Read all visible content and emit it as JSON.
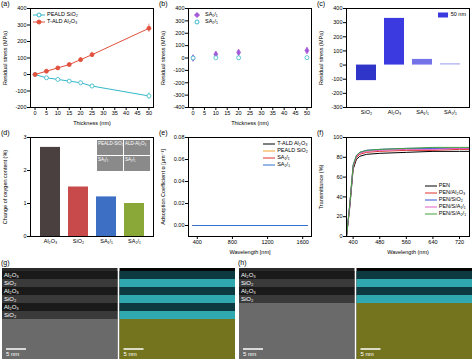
{
  "chart_data": [
    {
      "panel": "(a)",
      "type": "line",
      "x_label": "Thickness (nm)",
      "y_label": "Residual stress (MPa)",
      "x": [
        0,
        5,
        10,
        15,
        20,
        25,
        50
      ],
      "series": [
        {
          "name": "PEALD SiO₂",
          "color": "#35b8c8",
          "marker": "circle-open",
          "values": [
            0,
            -20,
            -30,
            -40,
            -50,
            -70,
            -130
          ],
          "errors": [
            0,
            5,
            8,
            8,
            10,
            12,
            20
          ]
        },
        {
          "name": "T-ALD Al₂O₃",
          "color": "#e0503c",
          "marker": "circle",
          "values": [
            0,
            20,
            40,
            60,
            90,
            120,
            280
          ],
          "errors": [
            0,
            5,
            8,
            10,
            12,
            15,
            25
          ]
        }
      ],
      "xlim": [
        -2,
        52
      ],
      "xticks": [
        0,
        5,
        10,
        15,
        20,
        25,
        30,
        35,
        40,
        45,
        50
      ],
      "ylim": [
        -200,
        400
      ],
      "yticks": [
        -200,
        -100,
        0,
        100,
        200,
        300,
        400
      ],
      "legend": "top-left"
    },
    {
      "panel": "(b)",
      "type": "scatter",
      "x_label": "Thickness (nm)",
      "y_label": "Residual stress (MPa)",
      "x": [
        0,
        10,
        20,
        50
      ],
      "series": [
        {
          "name": "SA₁/₁",
          "color": "#a35ad8",
          "marker": "diamond",
          "values": [
            0,
            30,
            45,
            60
          ],
          "errors": [
            0,
            15,
            12,
            20
          ]
        },
        {
          "name": "SA₂/₁",
          "color": "#35b8c8",
          "marker": "circle-open",
          "values": [
            0,
            2,
            2,
            3
          ],
          "errors": [
            0,
            3,
            3,
            3
          ]
        }
      ],
      "xlim": [
        -2,
        52
      ],
      "xticks": [
        0,
        5,
        10,
        15,
        20,
        25,
        30,
        35,
        40,
        45,
        50
      ],
      "ylim": [
        -400,
        400
      ],
      "yticks": [
        -400,
        -300,
        -200,
        -100,
        0,
        100,
        200,
        300,
        400
      ],
      "legend": "top-left"
    },
    {
      "panel": "(c)",
      "type": "bar",
      "y_label": "Residual stress (MPa)",
      "categories": [
        "SiO₂",
        "Al₂O₃",
        "SA₁/₁",
        "SA₂/₁"
      ],
      "series": [
        {
          "name": "50 nm",
          "color": "#3a3ae0",
          "values": [
            -110,
            330,
            40,
            10
          ],
          "colors": [
            "#2f35c8",
            "#3a3ae0",
            "#7474e8",
            "#b4b8f0"
          ]
        }
      ],
      "ylim": [
        -300,
        400
      ],
      "yticks": [
        -300,
        -200,
        -100,
        0,
        100,
        200,
        300,
        400
      ],
      "legend": "top-right"
    },
    {
      "panel": "(d)",
      "type": "bar",
      "y_label": "Change of oxygen content (%)",
      "categories": [
        "Al₂O₃",
        "SiO₂",
        "SA₁/₁",
        "SA₂/₁"
      ],
      "values": [
        2.7,
        1.5,
        1.2,
        1.0
      ],
      "colors": [
        "#4a4040",
        "#c84a4a",
        "#3d6fc4",
        "#8aa838"
      ],
      "insets": [
        "PEALD-SiO₂",
        "ALD-Al₂O₃",
        "SA₁/₁",
        "SA₂/₁"
      ],
      "ylim": [
        0,
        3
      ],
      "yticks": [
        0,
        1,
        2,
        3
      ]
    },
    {
      "panel": "(e)",
      "type": "line",
      "x_label": "Wavelength [nm]",
      "y_label": "Adsorption Coefficient α [μm⁻¹]",
      "x": [
        350,
        1650
      ],
      "series": [
        {
          "name": "T-ALD Al₂O₃",
          "color": "#000000",
          "values": [
            0,
            0
          ]
        },
        {
          "name": "PEALD SiO₂",
          "color": "#f0a030",
          "values": [
            0,
            0
          ]
        },
        {
          "name": "SA₁/₁",
          "color": "#e03030",
          "values": [
            0,
            0
          ]
        },
        {
          "name": "SA₂/₁",
          "color": "#3070d0",
          "values": [
            0,
            0
          ]
        }
      ],
      "xlim": [
        300,
        1700
      ],
      "xticks": [
        400,
        800,
        1200,
        1600
      ],
      "ylim": [
        -0.01,
        0.08
      ],
      "yticks": [
        {
          "value": 0,
          "label": "0.00"
        },
        {
          "value": 0.02,
          "label": "0.02"
        },
        {
          "value": 0.04,
          "label": "0.04"
        },
        {
          "value": 0.06,
          "label": "0.06"
        },
        {
          "value": 0.08,
          "label": "0.08"
        }
      ],
      "legend": "top-right"
    },
    {
      "panel": "(f)",
      "type": "line",
      "x_label": "Wavelength (nm)",
      "y_label": "Transmittance (%)",
      "x": [
        380,
        390,
        400,
        410,
        420,
        440,
        480,
        560,
        640,
        720,
        750
      ],
      "series": [
        {
          "name": "PEN",
          "color": "#000000",
          "values": [
            0,
            30,
            68,
            78,
            81,
            83,
            84,
            85,
            86,
            86,
            86
          ]
        },
        {
          "name": "PEN/Al₂O₃",
          "color": "#e03030",
          "values": [
            0,
            32,
            70,
            80,
            83,
            85,
            86,
            87,
            87,
            88,
            88
          ]
        },
        {
          "name": "PEN/SiO₂",
          "color": "#3050d0",
          "values": [
            0,
            33,
            72,
            82,
            85,
            87,
            88,
            89,
            89,
            89,
            89
          ]
        },
        {
          "name": "PEN/S/A₁/₁",
          "color": "#e060c0",
          "values": [
            0,
            32,
            71,
            81,
            84,
            86,
            87,
            88,
            88,
            89,
            89
          ]
        },
        {
          "name": "PEN/S/A₂/₁",
          "color": "#40a040",
          "values": [
            0,
            33,
            72,
            82,
            85,
            87,
            88,
            89,
            90,
            90,
            90
          ]
        }
      ],
      "xlim": [
        380,
        750
      ],
      "xticks": [
        400,
        480,
        560,
        640,
        720
      ],
      "ylim": [
        0,
        100
      ],
      "yticks": [
        0,
        20,
        40,
        60,
        80,
        100
      ],
      "legend": "right"
    }
  ],
  "images": [
    {
      "panel": "(g)",
      "layers": [
        "Al₂O₃",
        "SiO₂",
        "Al₂O₃",
        "SiO₂",
        "Al₂O₃",
        "SiO₂"
      ],
      "scale_bar": "5 nm"
    },
    {
      "panel": "(h)",
      "layers": [
        "Al₂O₃",
        "SiO₂",
        "Al₂O₃",
        "SiO₂"
      ],
      "scale_bar": "5 nm"
    }
  ]
}
